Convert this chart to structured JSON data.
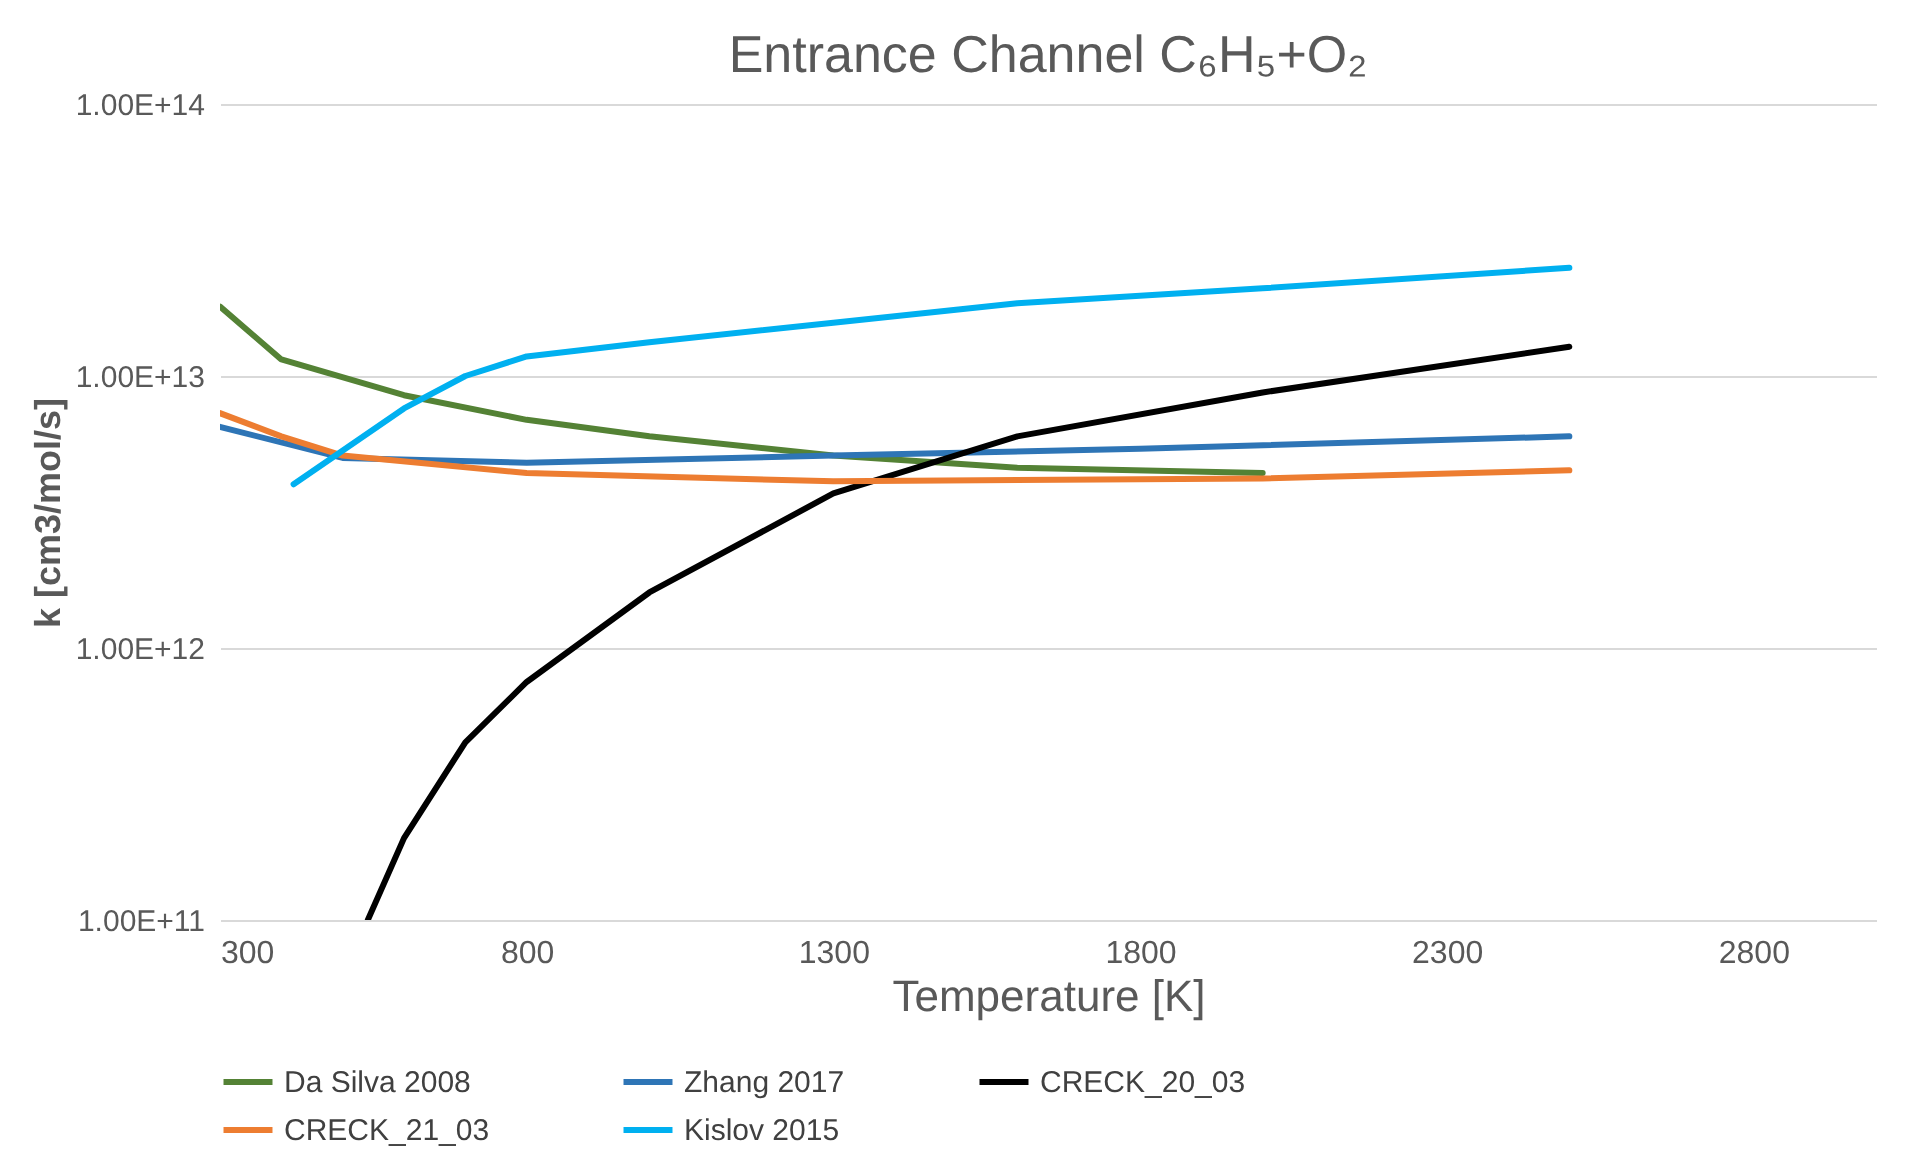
{
  "chart_data": {
    "type": "line",
    "title": "Entrance Channel C₆H₅+O₂",
    "xlabel": "Temperature [K]",
    "ylabel": "k [cm3/mol/s]",
    "log": "y",
    "grid": "y",
    "legend": "bottom",
    "marker": "none",
    "line_style": "solid",
    "xlim": [
      300,
      3000
    ],
    "xticks": [
      300,
      800,
      1300,
      1800,
      2300,
      2800
    ],
    "ylim": [
      100000000000.0,
      100000000000000.0
    ],
    "yticks": [
      {
        "value": 100000000000.0,
        "label": "1.00E+11"
      },
      {
        "value": 1000000000000.0,
        "label": "1.00E+12"
      },
      {
        "value": 10000000000000.0,
        "label": "1.00E+13"
      },
      {
        "value": 100000000000000.0,
        "label": "1.00E+14"
      }
    ],
    "series": [
      {
        "name": "Da Silva 2008",
        "color": "#548235",
        "x": [
          300,
          400,
          600,
          800,
          1000,
          1300,
          1600,
          2000
        ],
        "values": [
          18000000000000.0,
          11500000000000.0,
          8500000000000.0,
          6900000000000.0,
          6000000000000.0,
          5100000000000.0,
          4600000000000.0,
          4400000000000.0
        ]
      },
      {
        "name": "Zhang 2017",
        "color": "#2e75b6",
        "x": [
          300,
          500,
          800,
          1300,
          1800,
          2500
        ],
        "values": [
          6500000000000.0,
          5000000000000.0,
          4800000000000.0,
          5100000000000.0,
          5400000000000.0,
          6000000000000.0
        ]
      },
      {
        "name": "CRECK_20_03",
        "color": "#000000",
        "x": [
          541,
          600,
          700,
          800,
          1000,
          1300,
          1600,
          2000,
          2500
        ],
        "values": [
          100000000000.0,
          200000000000.0,
          450000000000.0,
          750000000000.0,
          1600000000000.0,
          3700000000000.0,
          6000000000000.0,
          8700000000000.0,
          12800000000000.0
        ]
      },
      {
        "name": "CRECK_21_03",
        "color": "#ed7d31",
        "x": [
          300,
          400,
          500,
          800,
          1300,
          2000,
          2500
        ],
        "values": [
          7300000000000.0,
          6000000000000.0,
          5100000000000.0,
          4400000000000.0,
          4100000000000.0,
          4200000000000.0,
          4500000000000.0
        ]
      },
      {
        "name": "Kislov 2015",
        "color": "#00b0f0",
        "x": [
          420,
          600,
          700,
          800,
          1000,
          1300,
          1600,
          2000,
          2500
        ],
        "values": [
          4000000000000.0,
          7600000000000.0,
          10000000000000.0,
          11800000000000.0,
          13300000000000.0,
          15700000000000.0,
          18500000000000.0,
          21000000000000.0,
          25000000000000.0
        ]
      }
    ]
  }
}
